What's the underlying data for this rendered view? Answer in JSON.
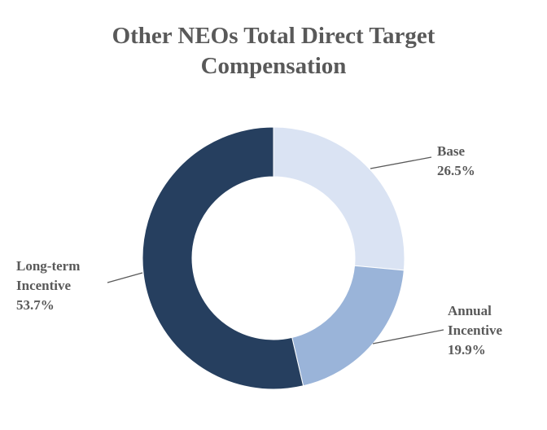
{
  "chart_data": {
    "type": "donut",
    "title": "Other NEOs Total Direct Target Compensation",
    "categories": [
      "Base",
      "Annual Incentive",
      "Long-term Incentive"
    ],
    "values": [
      26.5,
      19.9,
      53.7
    ],
    "value_labels": [
      "26.5%",
      "19.9%",
      "53.7%"
    ],
    "colors": [
      "#dae3f3",
      "#9ab4d9",
      "#263f5f"
    ]
  }
}
